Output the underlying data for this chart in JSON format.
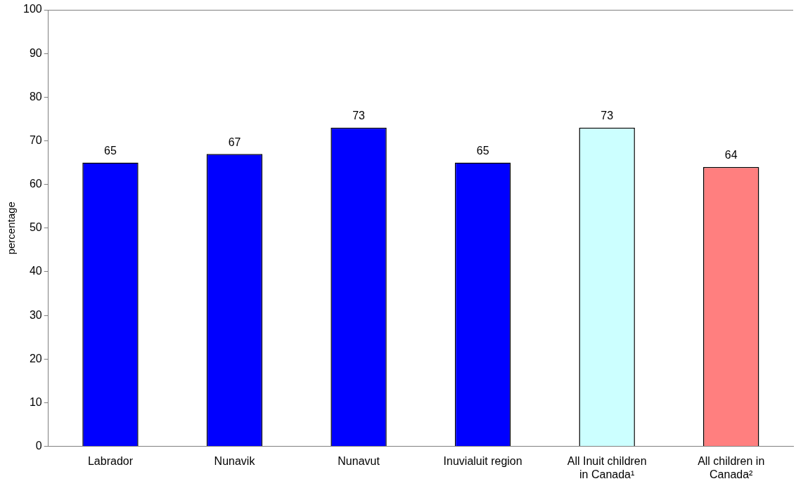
{
  "chart_data": {
    "type": "bar",
    "ylabel": "percentage",
    "categories": [
      "Labrador",
      "Nunavik",
      "Nunavut",
      "Inuvialuit region",
      "All Inuit children in Canada¹",
      "All children in Canada²"
    ],
    "values": [
      65,
      67,
      73,
      65,
      73,
      64
    ],
    "colors": [
      "#0000ff",
      "#0000ff",
      "#0000ff",
      "#0000ff",
      "#ccffff",
      "#ff7f7f"
    ],
    "ylim": [
      0,
      100
    ],
    "yticks": [
      0,
      10,
      20,
      30,
      40,
      50,
      60,
      70,
      80,
      90,
      100
    ],
    "grid": false,
    "legend": false,
    "data_labels": true
  }
}
